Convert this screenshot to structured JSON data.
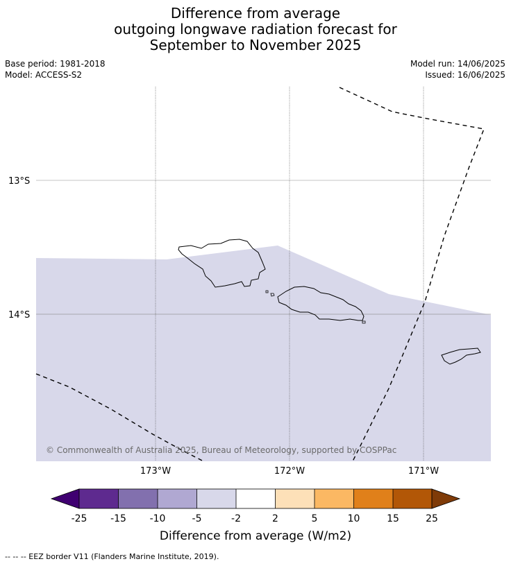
{
  "title": {
    "line1": "Difference from average",
    "line2": "outgoing longwave radiation forecast for",
    "line3": "September to November 2025"
  },
  "meta_left": {
    "base_period": "Base period: 1981-2018",
    "model": "Model: ACCESS-S2"
  },
  "meta_right": {
    "model_run": "Model run: 14/06/2025",
    "issued": "Issued: 16/06/2025"
  },
  "map": {
    "lat_labels": [
      "13°S",
      "14°S"
    ],
    "lon_labels": [
      "173°W",
      "172°W",
      "171°W"
    ],
    "copyright": "© Commonwealth of Australia 2025, Bureau of Meteorology, supported by COSPPac",
    "fill_color": "#d8d8ea",
    "land_outline_color": "#000000"
  },
  "colorbar": {
    "label": "Difference from average (W/m2)",
    "ticks": [
      "-25",
      "-15",
      "-10",
      "-5",
      "-2",
      "2",
      "5",
      "10",
      "15",
      "25"
    ],
    "colors": [
      "#3f0071",
      "#5e2a8f",
      "#8270ae",
      "#b0a8d2",
      "#d8d8ea",
      "#ffffff",
      "#fde0b8",
      "#fbb863",
      "#e0801a",
      "#b25707",
      "#7f3b08"
    ]
  },
  "footer": "--  --  -- EEZ border V11 (Flanders Marine Institute, 2019)."
}
